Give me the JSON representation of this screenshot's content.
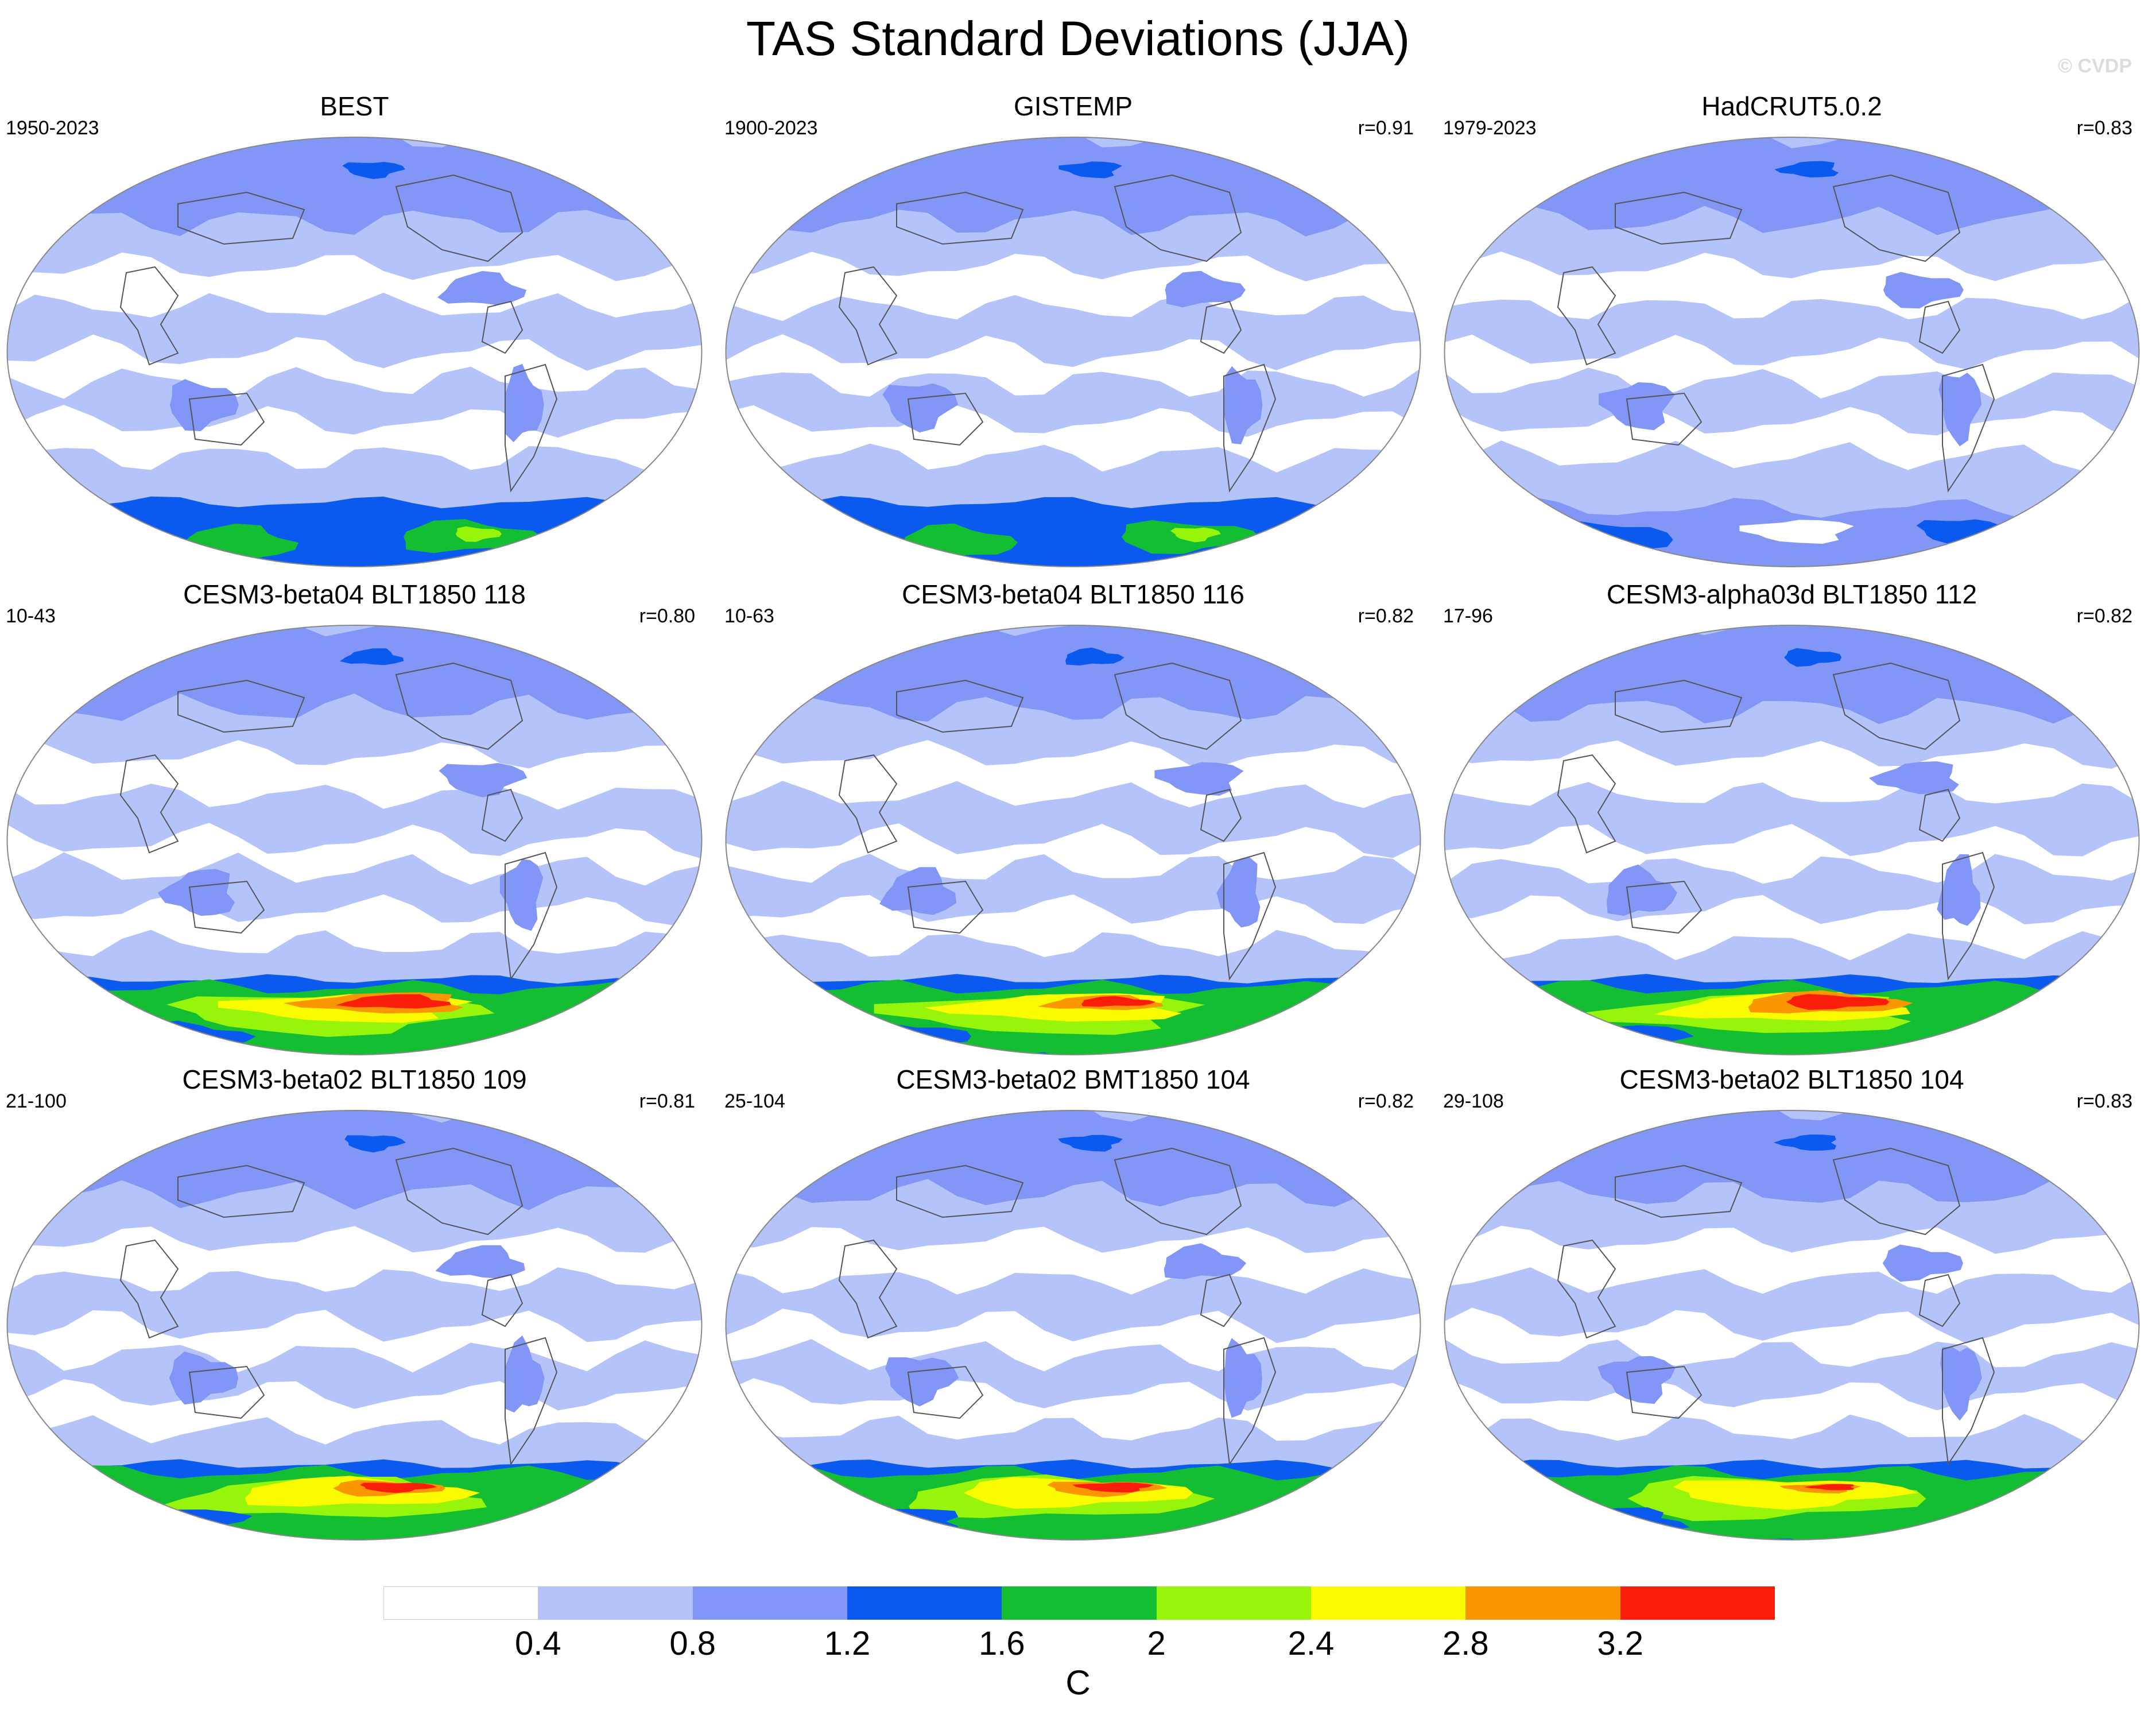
{
  "title": "TAS Standard Deviations (JJA)",
  "watermark": "© CVDP",
  "colors": {
    "bin0": "#ffffff",
    "bin1": "#b4c4fa",
    "bin2": "#8296f8",
    "bin3": "#0a5af0",
    "bin4": "#14be32",
    "bin5": "#96f50a",
    "bin6": "#fafa00",
    "bin7": "#fa9600",
    "bin8": "#fa1e0a",
    "coast": "#555555",
    "outline": "#888888"
  },
  "panels": [
    {
      "title": "BEST",
      "years": "1950-2023",
      "r": "",
      "variant": "obs-best"
    },
    {
      "title": "GISTEMP",
      "years": "1900-2023",
      "r": "r=0.91",
      "variant": "obs-gis"
    },
    {
      "title": "HadCRUT5.0.2",
      "years": "1979-2023",
      "r": "r=0.83",
      "variant": "obs-had"
    },
    {
      "title": "CESM3-beta04 BLT1850 118",
      "years": "10-43",
      "r": "r=0.80",
      "variant": "model-strong"
    },
    {
      "title": "CESM3-beta04 BLT1850 116",
      "years": "10-63",
      "r": "r=0.82",
      "variant": "model-mid"
    },
    {
      "title": "CESM3-alpha03d BLT1850 112",
      "years": "17-96",
      "r": "r=0.82",
      "variant": "model-strong"
    },
    {
      "title": "CESM3-beta02 BLT1850 109",
      "years": "21-100",
      "r": "r=0.81",
      "variant": "model-mid"
    },
    {
      "title": "CESM3-beta02 BMT1850 104",
      "years": "25-104",
      "r": "r=0.82",
      "variant": "model-mid"
    },
    {
      "title": "CESM3-beta02 BLT1850 104",
      "years": "29-108",
      "r": "r=0.83",
      "variant": "model-weak"
    }
  ],
  "colorbar": {
    "ticks": [
      "0.4",
      "0.8",
      "1.2",
      "1.6",
      "2",
      "2.4",
      "2.8",
      "3.2"
    ],
    "unit": "C"
  }
}
